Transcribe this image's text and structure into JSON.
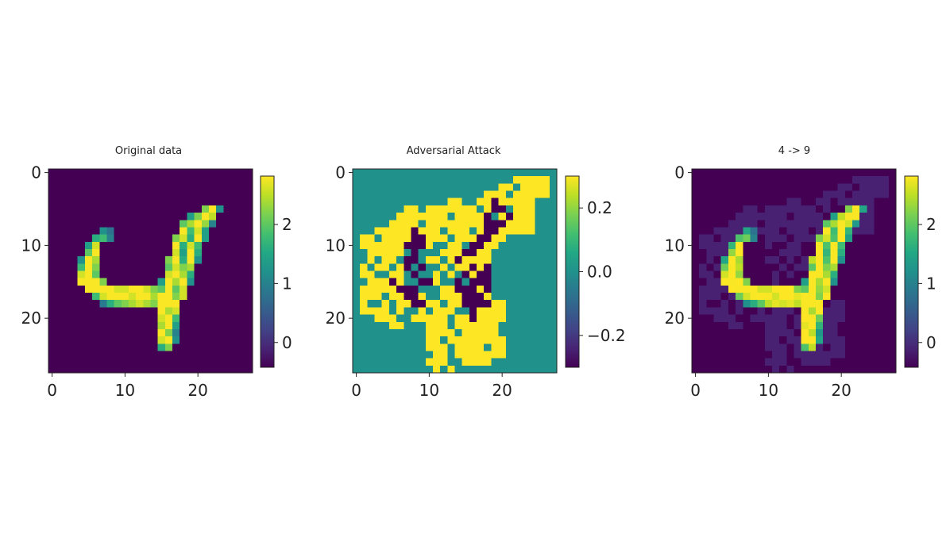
{
  "colors": {
    "colormap": "viridis",
    "viridis_stops": [
      "#440154",
      "#482475",
      "#414487",
      "#355f8d",
      "#2a788e",
      "#21918c",
      "#22a884",
      "#44bf70",
      "#7ad151",
      "#bddf26",
      "#fde725"
    ],
    "axis": "#222222",
    "background": "#ffffff"
  },
  "chart_data": [
    {
      "type": "heatmap",
      "title": "Original data",
      "image_shape": [
        28,
        28
      ],
      "xlim": [
        -0.5,
        27.5
      ],
      "ylim": [
        27.5,
        -0.5
      ],
      "xticks": [
        0,
        10,
        20
      ],
      "yticks": [
        0,
        10,
        20
      ],
      "value_range": [
        -0.42,
        2.82
      ],
      "colorbar": {
        "ticks": [
          0,
          1,
          2
        ],
        "tick_labels": [
          "0",
          "1",
          "2"
        ]
      },
      "background_value": -0.42,
      "rows": [
        {
          "y": 5,
          "x": [
            21,
            22,
            23
          ],
          "v": [
            2.2,
            2.8,
            1.2
          ]
        },
        {
          "y": 6,
          "x": [
            19,
            20,
            21,
            22
          ],
          "v": [
            1.4,
            2.2,
            2.8,
            2.5
          ]
        },
        {
          "y": 7,
          "x": [
            18,
            19,
            20,
            21,
            22
          ],
          "v": [
            2.0,
            2.4,
            2.8,
            2.3,
            1.0
          ]
        },
        {
          "y": 8,
          "x": [
            7,
            8,
            18,
            19,
            20,
            21
          ],
          "v": [
            1.2,
            0.8,
            2.8,
            1.8,
            2.6,
            1.4
          ]
        },
        {
          "y": 9,
          "x": [
            6,
            7,
            8,
            17,
            18,
            19,
            20,
            21
          ],
          "v": [
            1.6,
            1.8,
            1.0,
            2.2,
            2.6,
            1.6,
            2.8,
            1.4
          ]
        },
        {
          "y": 10,
          "x": [
            5,
            6,
            17,
            18,
            19,
            20
          ],
          "v": [
            1.4,
            2.6,
            2.8,
            1.6,
            2.6,
            1.8
          ]
        },
        {
          "y": 11,
          "x": [
            5,
            6,
            17,
            18,
            19,
            20
          ],
          "v": [
            2.0,
            2.8,
            2.6,
            1.4,
            2.8,
            1.6
          ]
        },
        {
          "y": 12,
          "x": [
            4,
            5,
            6,
            16,
            17,
            18,
            19,
            20
          ],
          "v": [
            1.2,
            2.8,
            2.4,
            2.2,
            2.8,
            1.6,
            2.8,
            1.2
          ]
        },
        {
          "y": 13,
          "x": [
            4,
            5,
            6,
            16,
            17,
            18,
            19
          ],
          "v": [
            1.8,
            2.8,
            2.2,
            2.0,
            2.6,
            2.2,
            2.4
          ]
        },
        {
          "y": 14,
          "x": [
            4,
            5,
            6,
            16,
            17,
            18,
            19
          ],
          "v": [
            2.6,
            2.8,
            2.0,
            2.6,
            2.8,
            2.4,
            1.6
          ]
        },
        {
          "y": 15,
          "x": [
            4,
            5,
            6,
            7,
            15,
            16,
            17,
            18,
            19
          ],
          "v": [
            2.8,
            2.8,
            2.8,
            2.2,
            1.4,
            2.8,
            2.4,
            2.8,
            1.2
          ]
        },
        {
          "y": 16,
          "x": [
            5,
            6,
            7,
            8,
            9,
            10,
            11,
            12,
            13,
            14,
            15,
            16,
            17,
            18
          ],
          "v": [
            2.8,
            2.8,
            2.8,
            2.8,
            2.6,
            2.6,
            2.8,
            2.8,
            2.6,
            2.2,
            2.0,
            2.8,
            2.0,
            2.6
          ]
        },
        {
          "y": 17,
          "x": [
            6,
            7,
            8,
            9,
            10,
            11,
            12,
            13,
            14,
            15,
            16,
            17,
            18
          ],
          "v": [
            1.8,
            2.6,
            2.8,
            2.8,
            2.8,
            2.6,
            2.8,
            2.8,
            2.4,
            2.8,
            2.8,
            2.2,
            2.6
          ]
        },
        {
          "y": 18,
          "x": [
            7,
            8,
            9,
            10,
            11,
            12,
            13,
            14,
            15,
            16,
            17
          ],
          "v": [
            0.9,
            1.6,
            2.0,
            2.2,
            2.4,
            2.6,
            2.4,
            2.2,
            2.8,
            2.8,
            2.8
          ]
        },
        {
          "y": 19,
          "x": [
            15,
            16,
            17
          ],
          "v": [
            2.8,
            2.4,
            2.6
          ]
        },
        {
          "y": 20,
          "x": [
            15,
            16,
            17
          ],
          "v": [
            2.6,
            2.8,
            1.8
          ]
        },
        {
          "y": 21,
          "x": [
            15,
            16,
            17
          ],
          "v": [
            2.4,
            2.8,
            1.4
          ]
        },
        {
          "y": 22,
          "x": [
            15,
            16,
            17
          ],
          "v": [
            2.8,
            2.2,
            1.0
          ]
        },
        {
          "y": 23,
          "x": [
            15,
            16,
            17
          ],
          "v": [
            2.6,
            2.8,
            1.2
          ]
        },
        {
          "y": 24,
          "x": [
            15,
            16
          ],
          "v": [
            1.6,
            2.2
          ]
        }
      ]
    },
    {
      "type": "heatmap",
      "title": "Adversarial Attack",
      "image_shape": [
        28,
        28
      ],
      "xlim": [
        -0.5,
        27.5
      ],
      "ylim": [
        27.5,
        -0.5
      ],
      "xticks": [
        0,
        10,
        20
      ],
      "yticks": [
        0,
        10,
        20
      ],
      "value_range": [
        -0.3,
        0.3
      ],
      "colorbar": {
        "ticks": [
          -0.2,
          0.0,
          0.2
        ],
        "tick_labels": [
          "−0.2",
          "0.0",
          "0.2"
        ]
      },
      "background_value": 0.0,
      "positive_value": 0.3,
      "negative_value": -0.3,
      "positive_rows": [
        {
          "y": 1,
          "x": [
            22,
            23,
            24,
            25,
            26
          ]
        },
        {
          "y": 2,
          "x": [
            20,
            21,
            23,
            24,
            25,
            26
          ]
        },
        {
          "y": 3,
          "x": [
            18,
            19,
            20,
            22,
            23,
            24,
            25,
            26
          ]
        },
        {
          "y": 4,
          "x": [
            13,
            14,
            17,
            18,
            20,
            21,
            22,
            23,
            24
          ]
        },
        {
          "y": 5,
          "x": [
            7,
            8,
            10,
            11,
            12,
            13,
            14,
            15,
            16,
            18,
            22,
            23,
            24
          ]
        },
        {
          "y": 6,
          "x": [
            6,
            7,
            8,
            9,
            10,
            11,
            12,
            14,
            15,
            16,
            17,
            20,
            22,
            23,
            24
          ]
        },
        {
          "y": 7,
          "x": [
            5,
            6,
            7,
            8,
            10,
            11,
            12,
            13,
            14,
            15,
            16,
            17,
            21,
            22,
            23,
            24
          ]
        },
        {
          "y": 8,
          "x": [
            3,
            4,
            5,
            6,
            7,
            9,
            10,
            11,
            13,
            14,
            15,
            17,
            20,
            21,
            22,
            23,
            24
          ]
        },
        {
          "y": 9,
          "x": [
            1,
            2,
            4,
            5,
            6,
            7,
            10,
            11,
            12,
            14,
            15,
            16,
            19,
            20
          ]
        },
        {
          "y": 10,
          "x": [
            1,
            2,
            3,
            4,
            5,
            6,
            10,
            13,
            14,
            18,
            19
          ]
        },
        {
          "y": 11,
          "x": [
            2,
            3,
            4,
            5,
            6,
            12,
            13,
            14,
            16,
            17,
            18
          ]
        },
        {
          "y": 12,
          "x": [
            2,
            4,
            5,
            10,
            11,
            13,
            15,
            16,
            17,
            18
          ]
        },
        {
          "y": 13,
          "x": [
            1,
            3,
            4,
            6,
            12,
            14,
            15,
            17
          ]
        },
        {
          "y": 14,
          "x": [
            1,
            2,
            5,
            6,
            11,
            13,
            16
          ]
        },
        {
          "y": 15,
          "x": [
            2,
            3,
            4,
            6,
            11
          ]
        },
        {
          "y": 16,
          "x": [
            1,
            2,
            3,
            4,
            5,
            12,
            13,
            17
          ]
        },
        {
          "y": 17,
          "x": [
            1,
            2,
            3,
            5,
            6,
            9,
            12,
            13,
            14,
            18
          ]
        },
        {
          "y": 18,
          "x": [
            1,
            4,
            6,
            7,
            10,
            11,
            13,
            14,
            19,
            20
          ]
        },
        {
          "y": 19,
          "x": [
            1,
            2,
            3,
            4,
            6,
            9,
            11,
            12,
            13,
            17,
            18,
            19,
            20
          ]
        },
        {
          "y": 20,
          "x": [
            3,
            4,
            5,
            8,
            9,
            10,
            11,
            12,
            14,
            15,
            17,
            18,
            19,
            20
          ]
        },
        {
          "y": 21,
          "x": [
            5,
            6,
            10,
            11,
            12,
            14,
            15,
            16,
            17,
            18,
            19
          ]
        },
        {
          "y": 22,
          "x": [
            10,
            11,
            12,
            13,
            15,
            16,
            17,
            18,
            19
          ]
        },
        {
          "y": 23,
          "x": [
            10,
            11,
            13,
            14,
            15,
            16,
            17,
            18,
            19,
            20
          ]
        },
        {
          "y": 24,
          "x": [
            10,
            11,
            12,
            14,
            15,
            16,
            17,
            19,
            20
          ]
        },
        {
          "y": 25,
          "x": [
            11,
            12,
            14,
            15,
            16,
            17,
            18,
            19,
            20
          ]
        },
        {
          "y": 26,
          "x": [
            10,
            11,
            12,
            15,
            16,
            17,
            18
          ]
        },
        {
          "y": 27,
          "x": [
            11,
            13
          ]
        }
      ],
      "negative_rows": [
        {
          "y": 4,
          "x": [
            19
          ]
        },
        {
          "y": 5,
          "x": [
            19,
            20
          ]
        },
        {
          "y": 6,
          "x": [
            18,
            21
          ]
        },
        {
          "y": 7,
          "x": [
            18,
            19,
            20
          ]
        },
        {
          "y": 8,
          "x": [
            8,
            18,
            19
          ]
        },
        {
          "y": 9,
          "x": [
            8,
            9,
            17,
            18
          ]
        },
        {
          "y": 10,
          "x": [
            7,
            8,
            9,
            16,
            17
          ]
        },
        {
          "y": 11,
          "x": [
            8,
            15,
            16
          ]
        },
        {
          "y": 12,
          "x": [
            7,
            8,
            14
          ]
        },
        {
          "y": 13,
          "x": [
            7,
            9,
            16,
            18
          ]
        },
        {
          "y": 14,
          "x": [
            8,
            15,
            17,
            18
          ]
        },
        {
          "y": 15,
          "x": [
            5,
            9,
            10,
            14,
            16,
            17,
            18
          ]
        },
        {
          "y": 16,
          "x": [
            6,
            7,
            8,
            14,
            15,
            16,
            18
          ]
        },
        {
          "y": 17,
          "x": [
            7,
            8,
            15,
            16,
            17
          ]
        },
        {
          "y": 18,
          "x": [
            8,
            9,
            15,
            16,
            17,
            18
          ]
        },
        {
          "y": 19,
          "x": [
            16
          ]
        },
        {
          "y": 20,
          "x": [
            16
          ]
        }
      ]
    },
    {
      "type": "heatmap",
      "title": "4 -> 9",
      "image_shape": [
        28,
        28
      ],
      "xlim": [
        -0.5,
        27.5
      ],
      "ylim": [
        27.5,
        -0.5
      ],
      "xticks": [
        0,
        10,
        20
      ],
      "yticks": [
        0,
        10,
        20
      ],
      "value_range": [
        -0.42,
        2.82
      ],
      "colorbar": {
        "ticks": [
          0,
          1,
          2
        ],
        "tick_labels": [
          "0",
          "1",
          "2"
        ]
      },
      "composition": "original + attack (shown: background -0.42, attacked background -0.12)",
      "attacked_background_value": -0.12
    }
  ]
}
